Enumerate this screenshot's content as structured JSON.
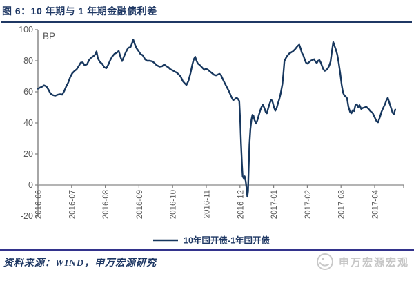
{
  "title": {
    "label": "图 6：10 年期与 1 年期金融债利差"
  },
  "footer": {
    "source": "资料来源：WIND，申万宏源研究",
    "watermark": "申万宏源宏观"
  },
  "colors": {
    "line": "#17375E",
    "title_navy": "#1F3864",
    "axis_line": "#808080",
    "zero_axis_line": "#9B9B9B",
    "tick_label": "#595959",
    "footer_separator": "#33338C",
    "watermark_gray": "#C6C6C6"
  },
  "chart_data": {
    "type": "line",
    "title": "图 6：10 年期与 1 年期金融债利差",
    "unit_label": "BP",
    "legend": [
      "10年国开债-1年国开债"
    ],
    "legend_position": "bottom",
    "grid": false,
    "x_unit": "months since 2016-06",
    "x_tick_labels": [
      "2016-06",
      "2016-07",
      "2016-08",
      "2016-09",
      "2016-10",
      "2016-11",
      "2016-12",
      "2017-01",
      "2017-02",
      "2017-03",
      "2017-04"
    ],
    "y_ticks": [
      100,
      80,
      60,
      40,
      20,
      0,
      -20
    ],
    "ylim": [
      -20,
      100
    ],
    "xlim": [
      0,
      10.87
    ],
    "series": [
      {
        "name": "10年国开债-1年国开债",
        "color": "#17375E",
        "points": [
          [
            0,
            62
          ],
          [
            0.06,
            62.7
          ],
          [
            0.12,
            63.3
          ],
          [
            0.18,
            64.2
          ],
          [
            0.25,
            63.5
          ],
          [
            0.31,
            61.5
          ],
          [
            0.37,
            59
          ],
          [
            0.43,
            58
          ],
          [
            0.51,
            57.5
          ],
          [
            0.59,
            58.2
          ],
          [
            0.66,
            58.5
          ],
          [
            0.72,
            58.2
          ],
          [
            0.78,
            60.5
          ],
          [
            0.84,
            63.5
          ],
          [
            0.9,
            66
          ],
          [
            0.96,
            69.5
          ],
          [
            1.02,
            72
          ],
          [
            1.09,
            73.5
          ],
          [
            1.15,
            74.5
          ],
          [
            1.21,
            76.5
          ],
          [
            1.27,
            78.8
          ],
          [
            1.33,
            79
          ],
          [
            1.39,
            77
          ],
          [
            1.46,
            77.8
          ],
          [
            1.52,
            80.5
          ],
          [
            1.58,
            82
          ],
          [
            1.64,
            82.8
          ],
          [
            1.7,
            84
          ],
          [
            1.74,
            86
          ],
          [
            1.78,
            81.5
          ],
          [
            1.84,
            79.2
          ],
          [
            1.91,
            78
          ],
          [
            1.97,
            75.8
          ],
          [
            2.03,
            75.2
          ],
          [
            2.09,
            77.5
          ],
          [
            2.15,
            80.5
          ],
          [
            2.21,
            82.8
          ],
          [
            2.27,
            84.4
          ],
          [
            2.34,
            85.2
          ],
          [
            2.4,
            86.3
          ],
          [
            2.46,
            82
          ],
          [
            2.5,
            79.8
          ],
          [
            2.56,
            83
          ],
          [
            2.62,
            86
          ],
          [
            2.68,
            88.3
          ],
          [
            2.75,
            88.8
          ],
          [
            2.79,
            91
          ],
          [
            2.83,
            93.6
          ],
          [
            2.87,
            91
          ],
          [
            2.93,
            88
          ],
          [
            2.99,
            86.2
          ],
          [
            3.05,
            84.2
          ],
          [
            3.11,
            83.6
          ],
          [
            3.18,
            81
          ],
          [
            3.24,
            80
          ],
          [
            3.32,
            80
          ],
          [
            3.4,
            79.6
          ],
          [
            3.46,
            78.6
          ],
          [
            3.52,
            77.2
          ],
          [
            3.61,
            76.2
          ],
          [
            3.69,
            76.5
          ],
          [
            3.75,
            77.6
          ],
          [
            3.81,
            76.6
          ],
          [
            3.87,
            75.8
          ],
          [
            3.93,
            74.6
          ],
          [
            4,
            73.8
          ],
          [
            4.06,
            73
          ],
          [
            4.12,
            72.4
          ],
          [
            4.18,
            71.2
          ],
          [
            4.24,
            69.8
          ],
          [
            4.3,
            67
          ],
          [
            4.37,
            65.2
          ],
          [
            4.41,
            64.4
          ],
          [
            4.47,
            67
          ],
          [
            4.53,
            72
          ],
          [
            4.59,
            78
          ],
          [
            4.63,
            81
          ],
          [
            4.67,
            82.6
          ],
          [
            4.71,
            80
          ],
          [
            4.75,
            78.2
          ],
          [
            4.82,
            77
          ],
          [
            4.88,
            75.6
          ],
          [
            4.94,
            74.2
          ],
          [
            4.98,
            74.8
          ],
          [
            5.04,
            74.4
          ],
          [
            5.1,
            73.2
          ],
          [
            5.16,
            72.2
          ],
          [
            5.23,
            71
          ],
          [
            5.29,
            70.6
          ],
          [
            5.35,
            71.2
          ],
          [
            5.39,
            71.6
          ],
          [
            5.43,
            71
          ],
          [
            5.49,
            68.2
          ],
          [
            5.55,
            65.5
          ],
          [
            5.61,
            63
          ],
          [
            5.68,
            60
          ],
          [
            5.74,
            57
          ],
          [
            5.8,
            54.6
          ],
          [
            5.84,
            55.2
          ],
          [
            5.9,
            56.2
          ],
          [
            5.94,
            55.4
          ],
          [
            5.98,
            54
          ],
          [
            6.01,
            40
          ],
          [
            6.03,
            27
          ],
          [
            6.06,
            13
          ],
          [
            6.08,
            5.5
          ],
          [
            6.11,
            4.4
          ],
          [
            6.14,
            5.6
          ],
          [
            6.17,
            2.5
          ],
          [
            6.2,
            -3
          ],
          [
            6.22,
            -7.5
          ],
          [
            6.24,
            -4
          ],
          [
            6.26,
            12
          ],
          [
            6.28,
            26
          ],
          [
            6.31,
            36
          ],
          [
            6.34,
            42
          ],
          [
            6.37,
            45.2
          ],
          [
            6.4,
            44.6
          ],
          [
            6.43,
            42
          ],
          [
            6.48,
            39.6
          ],
          [
            6.52,
            42
          ],
          [
            6.56,
            45
          ],
          [
            6.6,
            48
          ],
          [
            6.64,
            50.2
          ],
          [
            6.68,
            51.6
          ],
          [
            6.72,
            49.8
          ],
          [
            6.76,
            47.2
          ],
          [
            6.8,
            46.2
          ],
          [
            6.84,
            49.5
          ],
          [
            6.89,
            53
          ],
          [
            6.93,
            55
          ],
          [
            6.97,
            53.4
          ],
          [
            7.01,
            50
          ],
          [
            7.05,
            47.8
          ],
          [
            7.09,
            49.6
          ],
          [
            7.13,
            52.6
          ],
          [
            7.17,
            55.5
          ],
          [
            7.21,
            59
          ],
          [
            7.26,
            65
          ],
          [
            7.29,
            72
          ],
          [
            7.32,
            79.8
          ],
          [
            7.36,
            81.6
          ],
          [
            7.4,
            83
          ],
          [
            7.46,
            84.6
          ],
          [
            7.52,
            85.4
          ],
          [
            7.58,
            86.2
          ],
          [
            7.64,
            87.5
          ],
          [
            7.7,
            89.2
          ],
          [
            7.76,
            90.4
          ],
          [
            7.8,
            88
          ],
          [
            7.84,
            85
          ],
          [
            7.88,
            83.6
          ],
          [
            7.92,
            81
          ],
          [
            7.96,
            78.8
          ],
          [
            8,
            78.2
          ],
          [
            8.05,
            79
          ],
          [
            8.1,
            80
          ],
          [
            8.16,
            80.6
          ],
          [
            8.2,
            81
          ],
          [
            8.24,
            79.4
          ],
          [
            8.28,
            78.6
          ],
          [
            8.32,
            80
          ],
          [
            8.36,
            80.4
          ],
          [
            8.4,
            78.8
          ],
          [
            8.44,
            76.4
          ],
          [
            8.48,
            74.4
          ],
          [
            8.52,
            73.5
          ],
          [
            8.57,
            74.2
          ],
          [
            8.61,
            75.2
          ],
          [
            8.65,
            76.8
          ],
          [
            8.69,
            79.5
          ],
          [
            8.73,
            86
          ],
          [
            8.77,
            92
          ],
          [
            8.81,
            89.5
          ],
          [
            8.85,
            87
          ],
          [
            8.89,
            84
          ],
          [
            8.93,
            79
          ],
          [
            8.98,
            71.5
          ],
          [
            9.02,
            64.5
          ],
          [
            9.06,
            59.5
          ],
          [
            9.1,
            57.6
          ],
          [
            9.14,
            57
          ],
          [
            9.18,
            55.8
          ],
          [
            9.22,
            50.5
          ],
          [
            9.27,
            47
          ],
          [
            9.31,
            46.2
          ],
          [
            9.35,
            48.2
          ],
          [
            9.39,
            47.6
          ],
          [
            9.43,
            51.6
          ],
          [
            9.47,
            52
          ],
          [
            9.51,
            50.2
          ],
          [
            9.55,
            51.4
          ],
          [
            9.6,
            49
          ],
          [
            9.65,
            49.6
          ],
          [
            9.71,
            50
          ],
          [
            9.75,
            50.4
          ],
          [
            9.82,
            49
          ],
          [
            9.88,
            47.4
          ],
          [
            9.94,
            46.4
          ],
          [
            10,
            43.6
          ],
          [
            10.06,
            41
          ],
          [
            10.1,
            40.4
          ],
          [
            10.16,
            44
          ],
          [
            10.2,
            47
          ],
          [
            10.25,
            49.4
          ],
          [
            10.31,
            52.2
          ],
          [
            10.35,
            54.6
          ],
          [
            10.39,
            56.2
          ],
          [
            10.45,
            52
          ],
          [
            10.49,
            49.4
          ],
          [
            10.53,
            46.6
          ],
          [
            10.57,
            45.6
          ],
          [
            10.61,
            48.6
          ]
        ]
      }
    ]
  }
}
